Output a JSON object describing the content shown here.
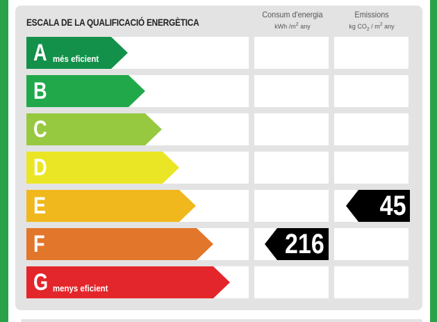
{
  "title": "ESCALA DE LA QUALIFICACIÓ ENERGÈTICA",
  "columns": {
    "energy": {
      "label": "Consum d'energia",
      "unit_prefix": "kWh /m",
      "unit_exp": "2",
      "unit_suffix": " any"
    },
    "emissions": {
      "label": "Emissions",
      "unit_prefix": "kg CO",
      "unit_sub": "2",
      "unit_mid": " / m",
      "unit_exp": "2",
      "unit_suffix": " any"
    }
  },
  "classes": [
    {
      "letter": "A",
      "note": "més eficient",
      "color": "#13914a"
    },
    {
      "letter": "B",
      "note": "",
      "color": "#21a84a"
    },
    {
      "letter": "C",
      "note": "",
      "color": "#97c940"
    },
    {
      "letter": "D",
      "note": "",
      "color": "#ebe625"
    },
    {
      "letter": "E",
      "note": "",
      "color": "#f0b81c"
    },
    {
      "letter": "F",
      "note": "",
      "color": "#e2762b"
    },
    {
      "letter": "G",
      "note": "menys eficient",
      "color": "#e3262b"
    }
  ],
  "results": {
    "energy": {
      "value": "216",
      "class": "F"
    },
    "emissions": {
      "value": "45",
      "class": "E"
    }
  },
  "colors": {
    "frame": "#2aa24a",
    "panel": "#e3e3e3",
    "tag": "#000000"
  }
}
